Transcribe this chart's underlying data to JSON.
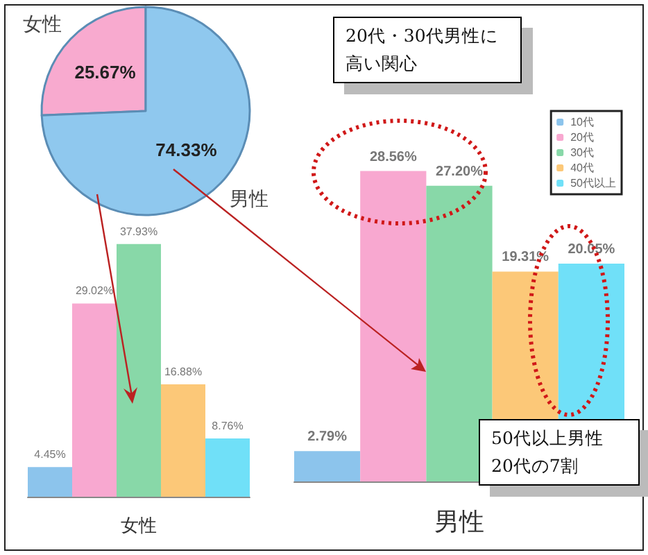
{
  "chart_data": [
    {
      "type": "pie",
      "categories": [
        "女性",
        "男性"
      ],
      "values": [
        25.67,
        74.33
      ],
      "colors": [
        "#f8aacf",
        "#8fc8ee"
      ],
      "value_labels": [
        "25.67%",
        "74.33%"
      ]
    },
    {
      "type": "bar",
      "xlabel": "女性",
      "categories": [
        null,
        null,
        null,
        null,
        null
      ],
      "stacked": true,
      "series": [
        {
          "color": "#8cc4ec",
          "values": [
            4.45,
            null,
            null,
            null,
            null
          ],
          "value_labels": [
            "4.45%",
            null,
            null,
            null,
            null
          ]
        },
        {
          "color": "#f8a8d0",
          "values": [
            null,
            29.02,
            null,
            null,
            null
          ],
          "value_labels": [
            null,
            "29.02%",
            null,
            null,
            null
          ]
        },
        {
          "color": "#88d8a8",
          "values": [
            null,
            null,
            37.93,
            null,
            null
          ],
          "value_labels": [
            null,
            null,
            "37.93%",
            null,
            null
          ]
        },
        {
          "color": "#fcc878",
          "values": [
            null,
            null,
            null,
            16.88,
            null
          ],
          "value_labels": [
            null,
            null,
            null,
            "16.88%",
            null
          ]
        },
        {
          "color": "#70e0f8",
          "values": [
            null,
            null,
            null,
            null,
            8.76
          ],
          "value_labels": [
            null,
            null,
            null,
            null,
            "8.76%"
          ]
        }
      ]
    },
    {
      "type": "bar",
      "xlabel": "男性",
      "categories": [
        null,
        null,
        null,
        null,
        null
      ],
      "stacked": true,
      "legend": "top right",
      "annotations": [
        "20代・30代男性に高い関心",
        "50代以上男性20代の7割"
      ],
      "series": [
        {
          "name": "10代",
          "color": "#8cc4ec",
          "values": [
            2.79,
            null,
            null,
            null,
            null
          ],
          "value_labels": [
            "2.79%",
            null,
            null,
            null,
            null
          ]
        },
        {
          "name": "20代",
          "color": "#f8a8d0",
          "values": [
            null,
            28.56,
            null,
            null,
            null
          ],
          "value_labels": [
            null,
            "28.56%",
            null,
            null,
            null
          ]
        },
        {
          "name": "30代",
          "color": "#88d8a8",
          "values": [
            null,
            null,
            27.2,
            null,
            null
          ],
          "value_labels": [
            null,
            null,
            "27.20%",
            null,
            null
          ]
        },
        {
          "name": "40代",
          "color": "#fcc878",
          "values": [
            null,
            null,
            null,
            19.31,
            null
          ],
          "value_labels": [
            null,
            null,
            null,
            "19.31%",
            null
          ]
        },
        {
          "name": "50代以上",
          "color": "#70e0f8",
          "values": [
            null,
            null,
            null,
            null,
            20.05
          ],
          "value_labels": [
            null,
            null,
            null,
            null,
            "20.05%"
          ]
        }
      ]
    }
  ]
}
